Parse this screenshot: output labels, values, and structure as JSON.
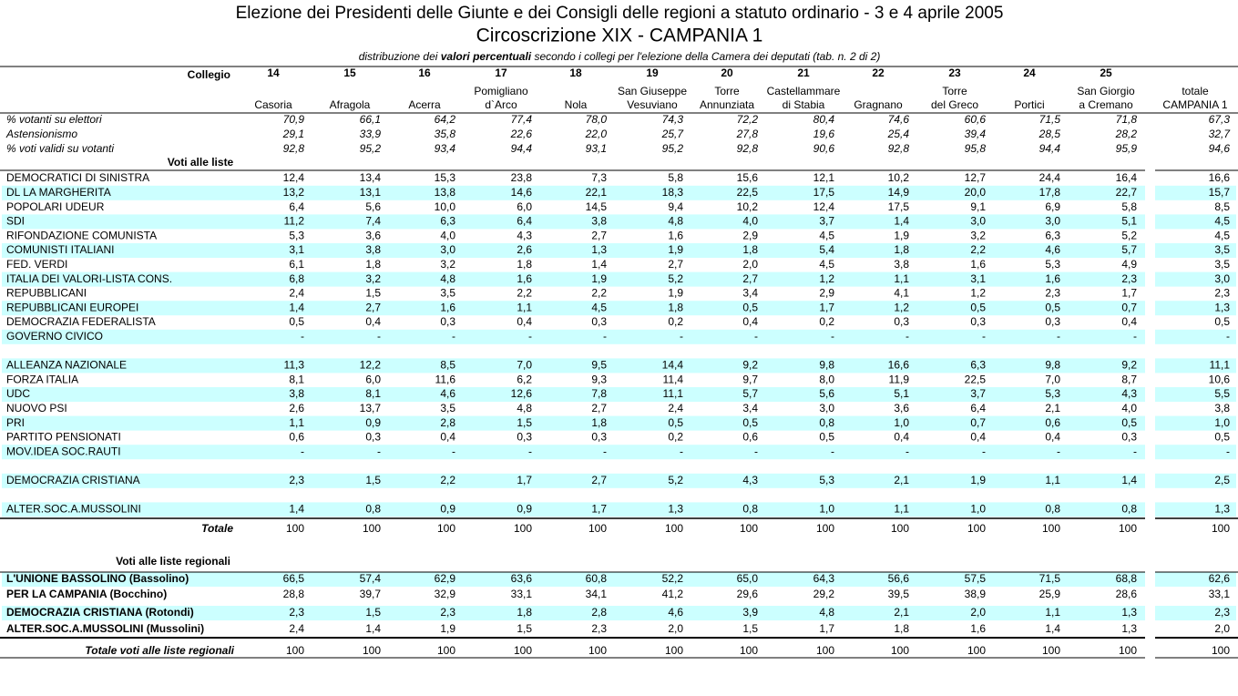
{
  "header": {
    "title": "Elezione dei Presidenti delle Giunte e dei Consigli delle regioni a statuto ordinario - 3 e 4 aprile 2005",
    "subtitle": "Circoscrizione XIX - CAMPANIA  1",
    "description": [
      "distribuzione dei ",
      "valori percentuali",
      " secondo i collegi per l'elezione della Camera dei deputati (tab. n. 2 di 2)"
    ]
  },
  "columns": {
    "label": "Collegio",
    "items": [
      {
        "number": "14",
        "name": [
          "Casoria"
        ]
      },
      {
        "number": "15",
        "name": [
          "Afragola"
        ]
      },
      {
        "number": "16",
        "name": [
          "Acerra"
        ]
      },
      {
        "number": "17",
        "name": [
          "Pomigliano",
          "d`Arco"
        ]
      },
      {
        "number": "18",
        "name": [
          "Nola"
        ]
      },
      {
        "number": "19",
        "name": [
          "San Giuseppe",
          "Vesuviano"
        ]
      },
      {
        "number": "20",
        "name": [
          "Torre",
          "Annunziata"
        ]
      },
      {
        "number": "21",
        "name": [
          "Castellammare",
          "di Stabia"
        ]
      },
      {
        "number": "22",
        "name": [
          "Gragnano"
        ]
      },
      {
        "number": "23",
        "name": [
          "Torre",
          "del Greco"
        ]
      },
      {
        "number": "24",
        "name": [
          "Portici"
        ]
      },
      {
        "number": "25",
        "name": [
          "San Giorgio",
          "a Cremano"
        ]
      }
    ],
    "total": [
      "totale",
      "CAMPANIA 1"
    ]
  },
  "stats": [
    {
      "label": "% votanti su elettori",
      "values": [
        "70,9",
        "66,1",
        "64,2",
        "77,4",
        "78,0",
        "74,3",
        "72,2",
        "80,4",
        "74,6",
        "60,6",
        "71,5",
        "71,8",
        "67,3"
      ]
    },
    {
      "label": "Astensionismo",
      "values": [
        "29,1",
        "33,9",
        "35,8",
        "22,6",
        "22,0",
        "25,7",
        "27,8",
        "19,6",
        "25,4",
        "39,4",
        "28,5",
        "28,2",
        "32,7"
      ]
    },
    {
      "label": "% voti validi su votanti",
      "values": [
        "92,8",
        "95,2",
        "93,4",
        "94,4",
        "93,1",
        "95,2",
        "92,8",
        "90,6",
        "92,8",
        "95,8",
        "94,4",
        "95,9",
        "94,6"
      ]
    }
  ],
  "lists": {
    "label": "Voti alle liste",
    "rows": [
      {
        "label": "DEMOCRATICI DI SINISTRA",
        "values": [
          "12,4",
          "13,4",
          "15,3",
          "23,8",
          "7,3",
          "5,8",
          "15,6",
          "12,1",
          "10,2",
          "12,7",
          "24,4",
          "16,4",
          "16,6"
        ]
      },
      {
        "label": "DL LA MARGHERITA",
        "values": [
          "13,2",
          "13,1",
          "13,8",
          "14,6",
          "22,1",
          "18,3",
          "22,5",
          "17,5",
          "14,9",
          "20,0",
          "17,8",
          "22,7",
          "15,7"
        ]
      },
      {
        "label": "POPOLARI UDEUR",
        "values": [
          "6,4",
          "5,6",
          "10,0",
          "6,0",
          "14,5",
          "9,4",
          "10,2",
          "12,4",
          "17,5",
          "9,1",
          "6,9",
          "5,8",
          "8,5"
        ]
      },
      {
        "label": "SDI",
        "values": [
          "11,2",
          "7,4",
          "6,3",
          "6,4",
          "3,8",
          "4,8",
          "4,0",
          "3,7",
          "1,4",
          "3,0",
          "3,0",
          "5,1",
          "4,5"
        ]
      },
      {
        "label": "RIFONDAZIONE COMUNISTA",
        "values": [
          "5,3",
          "3,6",
          "4,0",
          "4,3",
          "2,7",
          "1,6",
          "2,9",
          "4,5",
          "1,9",
          "3,2",
          "6,3",
          "5,2",
          "4,5"
        ]
      },
      {
        "label": "COMUNISTI ITALIANI",
        "values": [
          "3,1",
          "3,8",
          "3,0",
          "2,6",
          "1,3",
          "1,9",
          "1,8",
          "5,4",
          "1,8",
          "2,2",
          "4,6",
          "5,7",
          "3,5"
        ]
      },
      {
        "label": "FED. VERDI",
        "values": [
          "6,1",
          "1,8",
          "3,2",
          "1,8",
          "1,4",
          "2,7",
          "2,0",
          "4,5",
          "3,8",
          "1,6",
          "5,3",
          "4,9",
          "3,5"
        ]
      },
      {
        "label": "ITALIA DEI VALORI-LISTA CONS.",
        "values": [
          "6,8",
          "3,2",
          "4,8",
          "1,6",
          "1,9",
          "5,2",
          "2,7",
          "1,2",
          "1,1",
          "3,1",
          "1,6",
          "2,3",
          "3,0"
        ]
      },
      {
        "label": "REPUBBLICANI",
        "values": [
          "2,4",
          "1,5",
          "3,5",
          "2,2",
          "2,2",
          "1,9",
          "3,4",
          "2,9",
          "4,1",
          "1,2",
          "2,3",
          "1,7",
          "2,3"
        ]
      },
      {
        "label": "REPUBBLICANI EUROPEI",
        "values": [
          "1,4",
          "2,7",
          "1,6",
          "1,1",
          "4,5",
          "1,8",
          "0,5",
          "1,7",
          "1,2",
          "0,5",
          "0,5",
          "0,7",
          "1,3"
        ]
      },
      {
        "label": "DEMOCRAZIA FEDERALISTA",
        "values": [
          "0,5",
          "0,4",
          "0,3",
          "0,4",
          "0,3",
          "0,2",
          "0,4",
          "0,2",
          "0,3",
          "0,3",
          "0,3",
          "0,4",
          "0,5"
        ]
      },
      {
        "label": "GOVERNO CIVICO",
        "values": [
          "-",
          "-",
          "-",
          "-",
          "-",
          "-",
          "-",
          "-",
          "-",
          "-",
          "-",
          "-",
          "-"
        ]
      },
      null,
      {
        "label": "ALLEANZA NAZIONALE",
        "values": [
          "11,3",
          "12,2",
          "8,5",
          "7,0",
          "9,5",
          "14,4",
          "9,2",
          "9,8",
          "16,6",
          "6,3",
          "9,8",
          "9,2",
          "11,1"
        ]
      },
      {
        "label": "FORZA ITALIA",
        "values": [
          "8,1",
          "6,0",
          "11,6",
          "6,2",
          "9,3",
          "11,4",
          "9,7",
          "8,0",
          "11,9",
          "22,5",
          "7,0",
          "8,7",
          "10,6"
        ]
      },
      {
        "label": "UDC",
        "values": [
          "3,8",
          "8,1",
          "4,6",
          "12,6",
          "7,8",
          "11,1",
          "5,7",
          "5,6",
          "5,1",
          "3,7",
          "5,3",
          "4,3",
          "5,5"
        ]
      },
      {
        "label": "NUOVO PSI",
        "values": [
          "2,6",
          "13,7",
          "3,5",
          "4,8",
          "2,7",
          "2,4",
          "3,4",
          "3,0",
          "3,6",
          "6,4",
          "2,1",
          "4,0",
          "3,8"
        ]
      },
      {
        "label": "PRI",
        "values": [
          "1,1",
          "0,9",
          "2,8",
          "1,5",
          "1,8",
          "0,5",
          "0,5",
          "0,8",
          "1,0",
          "0,7",
          "0,6",
          "0,5",
          "1,0"
        ]
      },
      {
        "label": "PARTITO PENSIONATI",
        "values": [
          "0,6",
          "0,3",
          "0,4",
          "0,3",
          "0,3",
          "0,2",
          "0,6",
          "0,5",
          "0,4",
          "0,4",
          "0,4",
          "0,3",
          "0,5"
        ]
      },
      {
        "label": "MOV.IDEA SOC.RAUTI",
        "values": [
          "-",
          "-",
          "-",
          "-",
          "-",
          "-",
          "-",
          "-",
          "-",
          "-",
          "-",
          "-",
          "-"
        ]
      },
      null,
      {
        "label": "DEMOCRAZIA CRISTIANA",
        "values": [
          "2,3",
          "1,5",
          "2,2",
          "1,7",
          "2,7",
          "5,2",
          "4,3",
          "5,3",
          "2,1",
          "1,9",
          "1,1",
          "1,4",
          "2,5"
        ]
      },
      null,
      {
        "label": "ALTER.SOC.A.MUSSOLINI",
        "values": [
          "1,4",
          "0,8",
          "0,9",
          "0,9",
          "1,7",
          "1,3",
          "0,8",
          "1,0",
          "1,1",
          "1,0",
          "0,8",
          "0,8",
          "1,3"
        ]
      }
    ],
    "total": {
      "label": "Totale",
      "values": [
        "100",
        "100",
        "100",
        "100",
        "100",
        "100",
        "100",
        "100",
        "100",
        "100",
        "100",
        "100",
        "100"
      ]
    }
  },
  "regional": {
    "label": "Voti alle liste regionali",
    "rows": [
      {
        "label": "L'UNIONE BASSOLINO (Bassolino)",
        "values": [
          "66,5",
          "57,4",
          "62,9",
          "63,6",
          "60,8",
          "52,2",
          "65,0",
          "64,3",
          "56,6",
          "57,5",
          "71,5",
          "68,8",
          "62,6"
        ]
      },
      {
        "label": "PER LA CAMPANIA (Bocchino)",
        "values": [
          "28,8",
          "39,7",
          "32,9",
          "33,1",
          "34,1",
          "41,2",
          "29,6",
          "29,2",
          "39,5",
          "38,9",
          "25,9",
          "28,6",
          "33,1"
        ]
      },
      {
        "label": "DEMOCRAZIA CRISTIANA (Rotondi)",
        "values": [
          "2,3",
          "1,5",
          "2,3",
          "1,8",
          "2,8",
          "4,6",
          "3,9",
          "4,8",
          "2,1",
          "2,0",
          "1,1",
          "1,3",
          "2,3"
        ]
      },
      {
        "label": "ALTER.SOC.A.MUSSOLINI (Mussolini)",
        "values": [
          "2,4",
          "1,4",
          "1,9",
          "1,5",
          "2,3",
          "2,0",
          "1,5",
          "1,7",
          "1,8",
          "1,6",
          "1,4",
          "1,3",
          "2,0"
        ]
      }
    ],
    "total": {
      "label": "Totale voti alle liste regionali",
      "values": [
        "100",
        "100",
        "100",
        "100",
        "100",
        "100",
        "100",
        "100",
        "100",
        "100",
        "100",
        "100",
        "100"
      ]
    }
  }
}
